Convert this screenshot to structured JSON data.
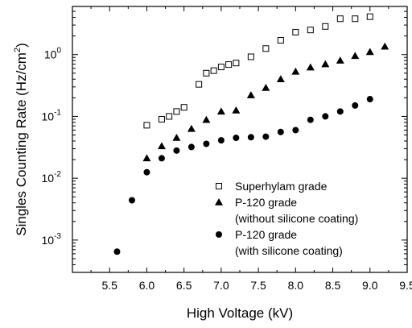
{
  "chart_data": {
    "type": "scatter",
    "xlabel": "High Voltage (kV)",
    "ylabel": "Singles Counting Rate (Hz/cm²)",
    "ylabel_main": "Singles Counting Rate (Hz/cm",
    "ylabel_sup": "2",
    "ylabel_tail": ")",
    "xlim": [
      5.0,
      9.5
    ],
    "ylim": [
      0.0003,
      6
    ],
    "yscale": "log",
    "grid": false,
    "legend_position": "bottom-right",
    "x_ticks": [
      {
        "value": 5.5,
        "label": "5.5"
      },
      {
        "value": 6.0,
        "label": "6.0"
      },
      {
        "value": 6.5,
        "label": "6.5"
      },
      {
        "value": 7.0,
        "label": "7.0"
      },
      {
        "value": 7.5,
        "label": "7.5"
      },
      {
        "value": 8.0,
        "label": "8.0"
      },
      {
        "value": 8.5,
        "label": "8.5"
      },
      {
        "value": 9.0,
        "label": "9.0"
      },
      {
        "value": 9.5,
        "label": "9.5"
      }
    ],
    "y_ticks": [
      {
        "value": 0.001,
        "base": "10",
        "exp": "-3"
      },
      {
        "value": 0.01,
        "base": "10",
        "exp": "-2"
      },
      {
        "value": 0.1,
        "base": "10",
        "exp": "-1"
      },
      {
        "value": 1,
        "base": "10",
        "exp": "0"
      }
    ],
    "series": [
      {
        "name": "Superhylam grade",
        "marker": "open-square",
        "legend_lines": [
          "Superhylam grade"
        ],
        "x": [
          6.0,
          6.2,
          6.3,
          6.4,
          6.5,
          6.7,
          6.8,
          6.9,
          7.0,
          7.1,
          7.2,
          7.4,
          7.6,
          7.8,
          8.0,
          8.2,
          8.4,
          8.6,
          8.8,
          9.0
        ],
        "y": [
          0.072,
          0.09,
          0.1,
          0.12,
          0.14,
          0.33,
          0.5,
          0.55,
          0.63,
          0.69,
          0.73,
          0.92,
          1.25,
          1.7,
          2.3,
          2.5,
          2.85,
          3.8,
          3.8,
          4.1
        ]
      },
      {
        "name": "P-120 grade (without silicone coating)",
        "marker": "filled-triangle",
        "legend_lines": [
          "P-120 grade",
          "(without silicone coating)"
        ],
        "x": [
          6.0,
          6.2,
          6.4,
          6.6,
          6.8,
          7.0,
          7.2,
          7.4,
          7.6,
          7.8,
          8.0,
          8.2,
          8.4,
          8.6,
          8.8,
          9.0,
          9.2
        ],
        "y": [
          0.021,
          0.033,
          0.045,
          0.063,
          0.088,
          0.12,
          0.125,
          0.22,
          0.29,
          0.4,
          0.53,
          0.62,
          0.7,
          0.8,
          0.95,
          1.1,
          1.35
        ]
      },
      {
        "name": "P-120 grade (with silicone coating)",
        "marker": "filled-circle",
        "legend_lines": [
          "P-120 grade",
          "(with silicone coating)"
        ],
        "x": [
          5.6,
          5.8,
          6.0,
          6.2,
          6.4,
          6.6,
          6.8,
          7.0,
          7.2,
          7.4,
          7.6,
          7.8,
          8.0,
          8.2,
          8.4,
          8.6,
          8.8,
          9.0
        ],
        "y": [
          0.00065,
          0.0044,
          0.0125,
          0.021,
          0.028,
          0.032,
          0.036,
          0.041,
          0.045,
          0.046,
          0.047,
          0.056,
          0.06,
          0.088,
          0.1,
          0.12,
          0.15,
          0.19
        ]
      }
    ]
  }
}
